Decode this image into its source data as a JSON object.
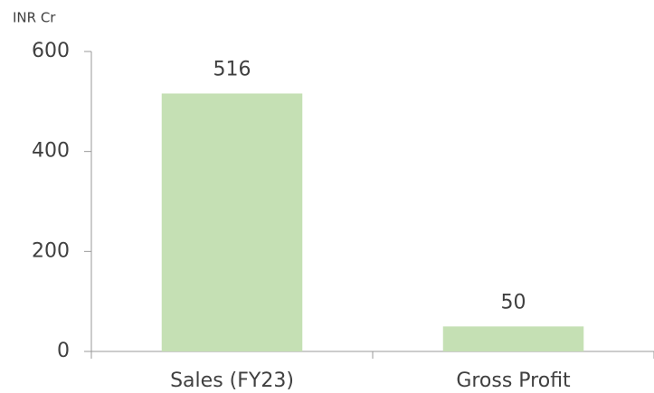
{
  "chart_data": {
    "type": "bar",
    "y_label": "INR Cr",
    "categories": [
      "Sales (FY23)",
      "Gross Profit"
    ],
    "values": [
      516,
      50
    ],
    "color": "#c5e0b4",
    "ylim": [
      0,
      600
    ],
    "yticks": [
      0,
      200,
      400,
      600
    ],
    "grid": false,
    "data_labels": true
  }
}
